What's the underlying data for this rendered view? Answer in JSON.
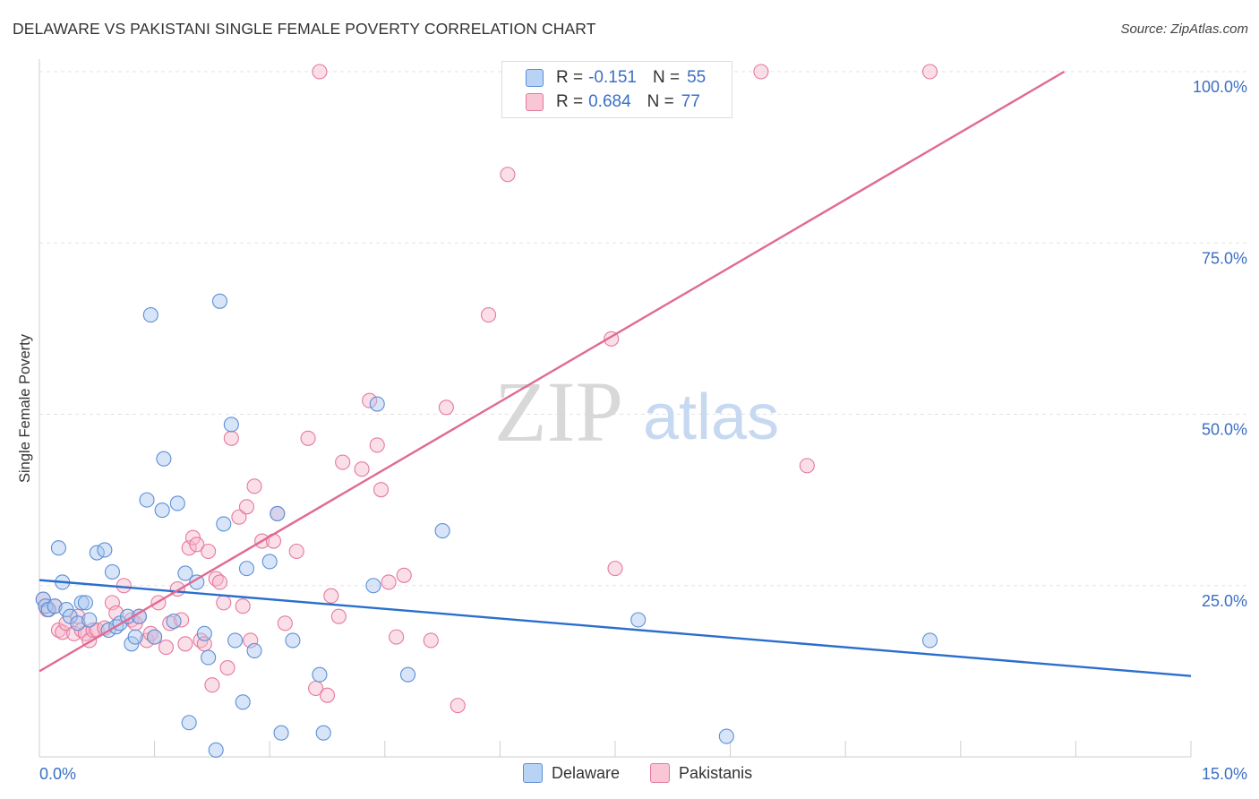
{
  "header": {
    "title": "DELAWARE VS PAKISTANI SINGLE FEMALE POVERTY CORRELATION CHART",
    "source": "Source: ZipAtlas.com"
  },
  "legend": {
    "r_label": "R =",
    "n_label": "N =",
    "rows": [
      {
        "r": "-0.151",
        "n": "55"
      },
      {
        "r": "0.684",
        "n": "77"
      }
    ]
  },
  "watermark": {
    "part1": "ZIP",
    "part2": "atlas"
  },
  "colors": {
    "delaware_fill": "#a8c6f0",
    "delaware_stroke": "#5b8fd6",
    "delaware_line": "#2a6fcc",
    "pakistani_fill": "#f7b8cc",
    "pakistani_stroke": "#e5799b",
    "pakistani_line": "#e06a94",
    "tick_label": "#3a6fc4",
    "grid": "#e3e3e3"
  },
  "chart_data": {
    "type": "scatter",
    "title": "DELAWARE VS PAKISTANI SINGLE FEMALE POVERTY CORRELATION CHART",
    "ylabel": "Single Female Poverty",
    "xlabel": "",
    "xlim": [
      0,
      15
    ],
    "ylim": [
      0,
      100
    ],
    "x_tick_labels": [
      "0.0%",
      "15.0%"
    ],
    "y_tick_labels": [
      "25.0%",
      "50.0%",
      "75.0%",
      "100.0%"
    ],
    "y_ticks": [
      25,
      50,
      75,
      100
    ],
    "grid": "horizontal dashed",
    "series": [
      {
        "name": "Delaware",
        "r": -0.151,
        "n": 55,
        "trend": {
          "x": [
            0,
            15
          ],
          "y": [
            25.8,
            11.8
          ]
        },
        "points": [
          [
            0.05,
            23.0
          ],
          [
            0.08,
            22.0
          ],
          [
            0.12,
            21.5
          ],
          [
            0.2,
            22.0
          ],
          [
            0.25,
            30.5
          ],
          [
            0.3,
            25.5
          ],
          [
            0.35,
            21.5
          ],
          [
            0.4,
            20.5
          ],
          [
            0.5,
            19.5
          ],
          [
            0.55,
            22.5
          ],
          [
            0.6,
            22.5
          ],
          [
            0.65,
            20.0
          ],
          [
            0.75,
            29.8
          ],
          [
            0.85,
            30.2
          ],
          [
            0.9,
            18.5
          ],
          [
            0.95,
            27.0
          ],
          [
            1.0,
            19.0
          ],
          [
            1.05,
            19.5
          ],
          [
            1.15,
            20.5
          ],
          [
            1.2,
            16.5
          ],
          [
            1.25,
            17.5
          ],
          [
            1.3,
            20.5
          ],
          [
            1.4,
            37.5
          ],
          [
            1.45,
            64.5
          ],
          [
            1.5,
            17.5
          ],
          [
            1.6,
            36.0
          ],
          [
            1.62,
            43.5
          ],
          [
            1.75,
            19.8
          ],
          [
            1.8,
            37.0
          ],
          [
            1.9,
            26.8
          ],
          [
            1.95,
            5.0
          ],
          [
            2.05,
            25.5
          ],
          [
            2.2,
            14.5
          ],
          [
            2.15,
            18.0
          ],
          [
            2.3,
            1.0
          ],
          [
            2.35,
            66.5
          ],
          [
            2.4,
            34.0
          ],
          [
            2.5,
            48.5
          ],
          [
            2.55,
            17.0
          ],
          [
            2.65,
            8.0
          ],
          [
            2.7,
            27.5
          ],
          [
            2.8,
            15.5
          ],
          [
            3.0,
            28.5
          ],
          [
            3.1,
            35.5
          ],
          [
            3.15,
            3.5
          ],
          [
            3.3,
            17.0
          ],
          [
            3.65,
            12.0
          ],
          [
            3.7,
            3.5
          ],
          [
            4.35,
            25.0
          ],
          [
            4.4,
            51.5
          ],
          [
            4.8,
            12.0
          ],
          [
            5.25,
            33.0
          ],
          [
            7.8,
            20.0
          ],
          [
            8.95,
            3.0
          ],
          [
            11.6,
            17.0
          ]
        ]
      },
      {
        "name": "Pakistanis",
        "r": 0.684,
        "n": 77,
        "trend": {
          "x": [
            0,
            13.35
          ],
          "y": [
            12.5,
            100
          ]
        },
        "points": [
          [
            0.05,
            23.0
          ],
          [
            0.1,
            21.5
          ],
          [
            0.2,
            22.0
          ],
          [
            0.25,
            18.5
          ],
          [
            0.3,
            18.2
          ],
          [
            0.35,
            19.5
          ],
          [
            0.45,
            18.0
          ],
          [
            0.5,
            20.5
          ],
          [
            0.55,
            18.5
          ],
          [
            0.6,
            18.0
          ],
          [
            0.65,
            17.0
          ],
          [
            0.7,
            18.5
          ],
          [
            0.75,
            18.5
          ],
          [
            0.85,
            18.8
          ],
          [
            0.95,
            22.5
          ],
          [
            1.0,
            21.0
          ],
          [
            1.1,
            25.0
          ],
          [
            1.2,
            20.0
          ],
          [
            1.25,
            19.5
          ],
          [
            1.3,
            20.5
          ],
          [
            1.4,
            17.0
          ],
          [
            1.45,
            18.0
          ],
          [
            1.5,
            17.5
          ],
          [
            1.55,
            22.5
          ],
          [
            1.65,
            16.0
          ],
          [
            1.7,
            19.5
          ],
          [
            1.8,
            24.5
          ],
          [
            1.85,
            20.0
          ],
          [
            1.9,
            16.5
          ],
          [
            1.95,
            30.5
          ],
          [
            2.0,
            32.0
          ],
          [
            2.05,
            31.0
          ],
          [
            2.1,
            17.0
          ],
          [
            2.15,
            16.5
          ],
          [
            2.2,
            30.0
          ],
          [
            2.25,
            10.5
          ],
          [
            2.3,
            26.0
          ],
          [
            2.35,
            25.5
          ],
          [
            2.4,
            22.5
          ],
          [
            2.45,
            13.0
          ],
          [
            2.5,
            46.5
          ],
          [
            2.6,
            35.0
          ],
          [
            2.65,
            22.0
          ],
          [
            2.7,
            36.5
          ],
          [
            2.75,
            17.0
          ],
          [
            2.8,
            39.5
          ],
          [
            2.9,
            31.5
          ],
          [
            3.05,
            31.5
          ],
          [
            3.1,
            35.5
          ],
          [
            3.2,
            19.5
          ],
          [
            3.35,
            30.0
          ],
          [
            3.5,
            46.5
          ],
          [
            3.6,
            10.0
          ],
          [
            3.65,
            100.0
          ],
          [
            3.75,
            9.0
          ],
          [
            3.8,
            23.5
          ],
          [
            3.9,
            20.5
          ],
          [
            3.95,
            43.0
          ],
          [
            4.2,
            42.0
          ],
          [
            4.3,
            52.0
          ],
          [
            4.4,
            45.5
          ],
          [
            4.45,
            39.0
          ],
          [
            4.55,
            25.5
          ],
          [
            4.65,
            17.5
          ],
          [
            4.75,
            26.5
          ],
          [
            5.1,
            17.0
          ],
          [
            5.3,
            51.0
          ],
          [
            5.45,
            7.5
          ],
          [
            5.85,
            64.5
          ],
          [
            6.1,
            85.0
          ],
          [
            6.35,
            100.0
          ],
          [
            6.45,
            100.0
          ],
          [
            7.45,
            61.0
          ],
          [
            7.5,
            27.5
          ],
          [
            9.4,
            100.0
          ],
          [
            10.0,
            42.5
          ],
          [
            11.6,
            100.0
          ]
        ]
      }
    ]
  }
}
